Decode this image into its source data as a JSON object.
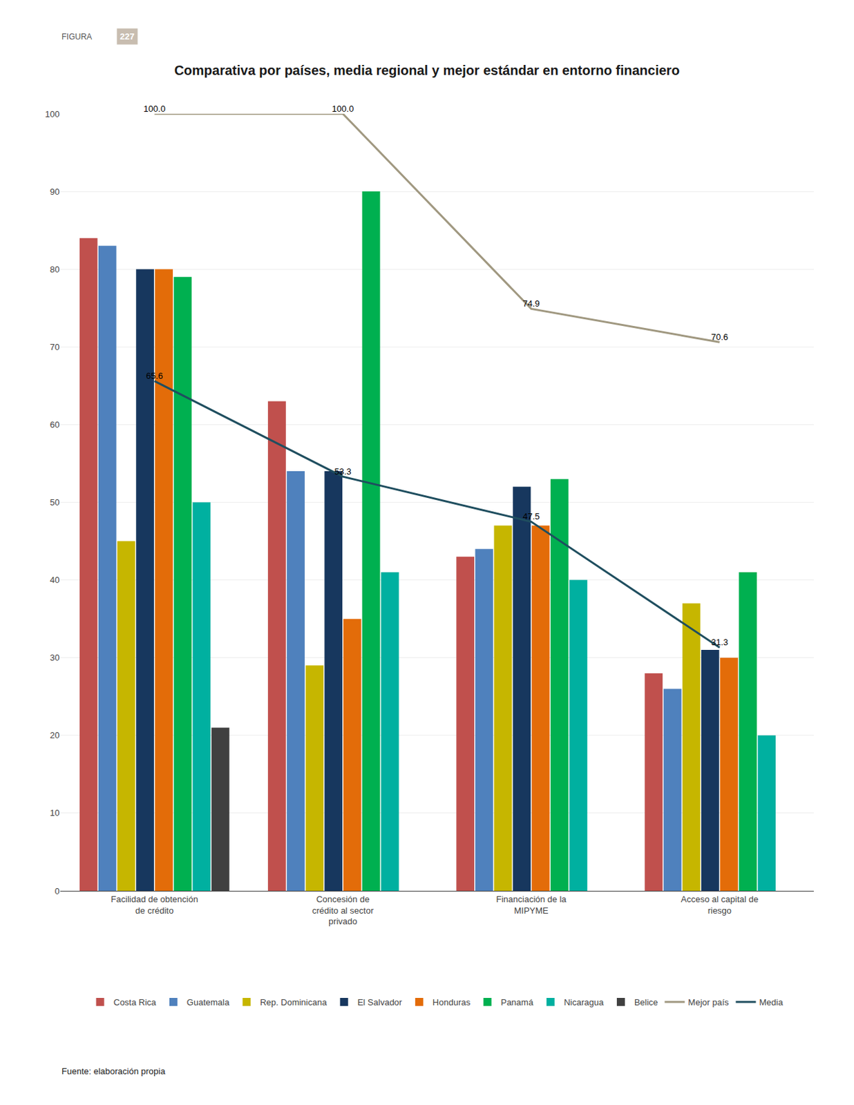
{
  "chart_data": {
    "type": "bar",
    "title": "Comparativa por países, media regional y mejor estándar en entorno financiero",
    "annotations": [
      "FIGURA",
      "227",
      "Fuente: elaboración propia"
    ],
    "categories": [
      "Facilidad de obtención\nde crédito",
      "Concesión de\ncrédito al sector\nprivado",
      "Financiación de la\nMIPYME",
      "Acceso al capital de\nriesgo"
    ],
    "series": [
      {
        "name": "Costa Rica",
        "color": "#c0504d",
        "values": [
          84,
          63,
          43,
          28
        ]
      },
      {
        "name": "Guatemala",
        "color": "#4f81bd",
        "values": [
          83,
          54,
          44,
          26
        ]
      },
      {
        "name": "Rep. Dominicana",
        "color": "#c6b600",
        "values": [
          45,
          29,
          47,
          37
        ]
      },
      {
        "name": "El Salvador",
        "color": "#17375e",
        "values": [
          80,
          54,
          52,
          31
        ]
      },
      {
        "name": "Honduras",
        "color": "#e36c09",
        "values": [
          80,
          35,
          47,
          30
        ]
      },
      {
        "name": "Panamá",
        "color": "#00b050",
        "values": [
          79,
          90,
          53,
          41
        ]
      },
      {
        "name": "Nicaragua",
        "color": "#00b0a0",
        "values": [
          50,
          41,
          40,
          20
        ]
      },
      {
        "name": "Belice",
        "color": "#404040",
        "values": [
          21,
          0,
          0,
          0
        ]
      },
      {
        "name": "Mejor país",
        "type": "line",
        "color": "#a09880",
        "values": [
          100.0,
          100.0,
          74.9,
          70.6
        ],
        "value_labels": [
          "100.0",
          "100.0",
          "74.9",
          "70.6"
        ],
        "data_labels": true
      },
      {
        "name": "Media",
        "type": "line",
        "color": "#1f4e5f",
        "values": [
          65.6,
          53.3,
          47.5,
          31.3
        ],
        "data_labels": true
      }
    ],
    "ylim": [
      0,
      100
    ],
    "yticks": [
      0,
      10,
      20,
      30,
      40,
      50,
      60,
      70,
      80,
      90,
      100
    ],
    "grid": true,
    "legend": "bottom"
  }
}
